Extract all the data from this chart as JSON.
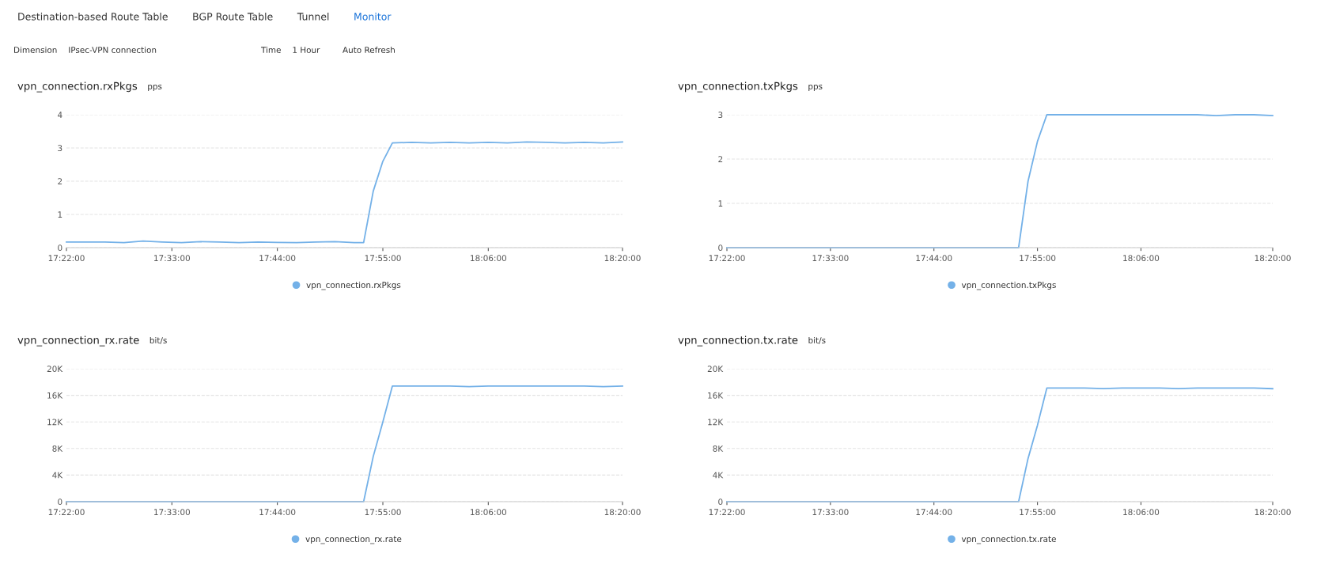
{
  "chart_data": [
    {
      "type": "other",
      "annotations": [
        "Destination-based Route Table",
        "BGP Route Table",
        "Tunnel",
        "Monitor",
        "Dimension",
        "IPsec-VPN connection",
        "Time",
        "1 Hour",
        "Auto Refresh"
      ]
    },
    {
      "type": "line",
      "title": "vpn_connection.rxPkgs",
      "subtitle": "pps",
      "legend": "bottom",
      "grid": "y",
      "marker": "none",
      "line_style": "solid",
      "x": [
        17.3667,
        17.4,
        17.4333,
        17.4667,
        17.5,
        17.5333,
        17.5667,
        17.6,
        17.6333,
        17.6667,
        17.7,
        17.7333,
        17.7667,
        17.8,
        17.8333,
        17.8667,
        17.8833,
        17.9,
        17.9167,
        17.9333,
        17.9667,
        18.0,
        18.0333,
        18.0667,
        18.1,
        18.1333,
        18.1667,
        18.2,
        18.2333,
        18.2667,
        18.3,
        18.3333
      ],
      "xlim": [
        17.3667,
        18.3333
      ],
      "xticks": [
        {
          "value": 17.3667,
          "label": "17:22:00"
        },
        {
          "value": 17.55,
          "label": "17:33:00"
        },
        {
          "value": 17.7333,
          "label": "17:44:00"
        },
        {
          "value": 17.9167,
          "label": "17:55:00"
        },
        {
          "value": 18.1,
          "label": "18:06:00"
        },
        {
          "value": 18.3333,
          "label": "18:20:00"
        }
      ],
      "ylim": [
        0,
        4
      ],
      "yticks": [
        0,
        1,
        2,
        3,
        4
      ],
      "series": [
        {
          "name": "vpn_connection.rxPkgs",
          "color": "#74b1e8",
          "values": [
            0.17,
            0.17,
            0.17,
            0.15,
            0.2,
            0.17,
            0.15,
            0.18,
            0.17,
            0.15,
            0.17,
            0.16,
            0.15,
            0.17,
            0.18,
            0.15,
            0.15,
            1.7,
            2.6,
            3.15,
            3.17,
            3.15,
            3.17,
            3.15,
            3.17,
            3.15,
            3.18,
            3.17,
            3.15,
            3.17,
            3.15,
            3.18
          ]
        }
      ]
    },
    {
      "type": "line",
      "title": "vpn_connection.txPkgs",
      "subtitle": "pps",
      "legend": "bottom",
      "grid": "y",
      "marker": "none",
      "line_style": "solid",
      "x": [
        17.3667,
        17.4,
        17.4333,
        17.4667,
        17.5,
        17.5333,
        17.5667,
        17.6,
        17.6333,
        17.6667,
        17.7,
        17.7333,
        17.7667,
        17.8,
        17.8333,
        17.8667,
        17.8833,
        17.9,
        17.9167,
        17.9333,
        17.9667,
        18.0,
        18.0333,
        18.0667,
        18.1,
        18.1333,
        18.1667,
        18.2,
        18.2333,
        18.2667,
        18.3,
        18.3333
      ],
      "xlim": [
        17.3667,
        18.3333
      ],
      "xticks": [
        {
          "value": 17.3667,
          "label": "17:22:00"
        },
        {
          "value": 17.55,
          "label": "17:33:00"
        },
        {
          "value": 17.7333,
          "label": "17:44:00"
        },
        {
          "value": 17.9167,
          "label": "17:55:00"
        },
        {
          "value": 18.1,
          "label": "18:06:00"
        },
        {
          "value": 18.3333,
          "label": "18:20:00"
        }
      ],
      "ylim": [
        0,
        3
      ],
      "yticks": [
        0,
        1,
        2,
        3
      ],
      "series": [
        {
          "name": "vpn_connection.txPkgs",
          "color": "#74b1e8",
          "values": [
            0,
            0,
            0,
            0,
            0,
            0,
            0,
            0,
            0,
            0,
            0,
            0,
            0,
            0,
            0,
            0,
            0,
            1.5,
            2.4,
            3.0,
            3.0,
            3.0,
            3.0,
            3.0,
            3.0,
            3.0,
            3.0,
            3.0,
            2.98,
            3.0,
            3.0,
            2.98
          ]
        }
      ]
    },
    {
      "type": "line",
      "title": "vpn_connection_rx.rate",
      "subtitle": "bit/s",
      "legend": "bottom",
      "grid": "y",
      "marker": "none",
      "line_style": "solid",
      "x": [
        17.3667,
        17.4,
        17.4333,
        17.4667,
        17.5,
        17.5333,
        17.5667,
        17.6,
        17.6333,
        17.6667,
        17.7,
        17.7333,
        17.7667,
        17.8,
        17.8333,
        17.8667,
        17.8833,
        17.9,
        17.9167,
        17.9333,
        17.9667,
        18.0,
        18.0333,
        18.0667,
        18.1,
        18.1333,
        18.1667,
        18.2,
        18.2333,
        18.2667,
        18.3,
        18.3333
      ],
      "xlim": [
        17.3667,
        18.3333
      ],
      "xticks": [
        {
          "value": 17.3667,
          "label": "17:22:00"
        },
        {
          "value": 17.55,
          "label": "17:33:00"
        },
        {
          "value": 17.7333,
          "label": "17:44:00"
        },
        {
          "value": 17.9167,
          "label": "17:55:00"
        },
        {
          "value": 18.1,
          "label": "18:06:00"
        },
        {
          "value": 18.3333,
          "label": "18:20:00"
        }
      ],
      "ylim": [
        0,
        20000
      ],
      "yticks": [
        0,
        {
          "value": 4000,
          "label": "4K"
        },
        {
          "value": 8000,
          "label": "8K"
        },
        {
          "value": 12000,
          "label": "12K"
        },
        {
          "value": 16000,
          "label": "16K"
        },
        {
          "value": 20000,
          "label": "20K"
        }
      ],
      "series": [
        {
          "name": "vpn_connection_rx.rate",
          "color": "#74b1e8",
          "values": [
            0,
            0,
            0,
            0,
            0,
            0,
            0,
            0,
            0,
            0,
            0,
            0,
            0,
            0,
            0,
            0,
            0,
            6800,
            12000,
            17400,
            17400,
            17400,
            17400,
            17300,
            17400,
            17400,
            17400,
            17400,
            17400,
            17400,
            17300,
            17400
          ]
        }
      ]
    },
    {
      "type": "line",
      "title": "vpn_connection.tx.rate",
      "subtitle": "bit/s",
      "legend": "bottom",
      "grid": "y",
      "marker": "none",
      "line_style": "solid",
      "x": [
        17.3667,
        17.4,
        17.4333,
        17.4667,
        17.5,
        17.5333,
        17.5667,
        17.6,
        17.6333,
        17.6667,
        17.7,
        17.7333,
        17.7667,
        17.8,
        17.8333,
        17.8667,
        17.8833,
        17.9,
        17.9167,
        17.9333,
        17.9667,
        18.0,
        18.0333,
        18.0667,
        18.1,
        18.1333,
        18.1667,
        18.2,
        18.2333,
        18.2667,
        18.3,
        18.3333
      ],
      "xlim": [
        17.3667,
        18.3333
      ],
      "xticks": [
        {
          "value": 17.3667,
          "label": "17:22:00"
        },
        {
          "value": 17.55,
          "label": "17:33:00"
        },
        {
          "value": 17.7333,
          "label": "17:44:00"
        },
        {
          "value": 17.9167,
          "label": "17:55:00"
        },
        {
          "value": 18.1,
          "label": "18:06:00"
        },
        {
          "value": 18.3333,
          "label": "18:20:00"
        }
      ],
      "ylim": [
        0,
        20000
      ],
      "yticks": [
        0,
        {
          "value": 4000,
          "label": "4K"
        },
        {
          "value": 8000,
          "label": "8K"
        },
        {
          "value": 12000,
          "label": "12K"
        },
        {
          "value": 16000,
          "label": "16K"
        },
        {
          "value": 20000,
          "label": "20K"
        }
      ],
      "series": [
        {
          "name": "vpn_connection.tx.rate",
          "color": "#74b1e8",
          "values": [
            0,
            0,
            0,
            0,
            0,
            0,
            0,
            0,
            0,
            0,
            0,
            0,
            0,
            0,
            0,
            0,
            0,
            6500,
            11500,
            17100,
            17100,
            17100,
            17000,
            17100,
            17100,
            17100,
            17000,
            17100,
            17100,
            17100,
            17100,
            17000
          ]
        }
      ]
    }
  ]
}
